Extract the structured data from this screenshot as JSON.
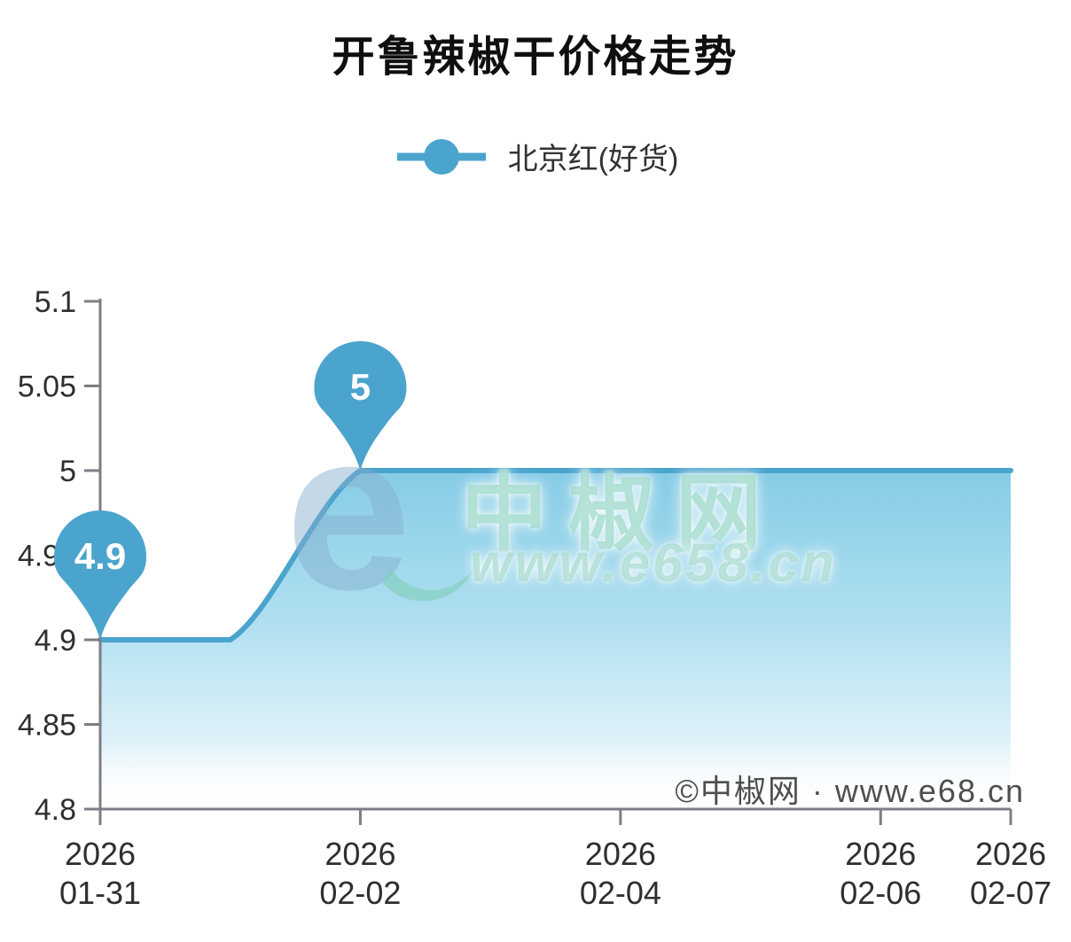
{
  "title": "开鲁辣椒干价格走势",
  "legend": {
    "label": "北京红(好货)",
    "color": "#4aa4cd"
  },
  "watermark": {
    "logo": "e",
    "name": "中椒网",
    "url": "www.e658.cn"
  },
  "copyright": {
    "text": "©中椒网 · www.e68.cn"
  },
  "colors": {
    "accent": "#4aa4cd",
    "axis": "#7d7d85",
    "tick_label": "#2f2f2f",
    "pin_text": "#ffffff",
    "area_top": "#7fc9e5",
    "area_mid": "#a9ddef",
    "area_low": "#d9eff8"
  },
  "chart_data": {
    "type": "line",
    "title": "开鲁辣椒干价格走势",
    "x": [
      "2026-01-31",
      "2026-02-01",
      "2026-02-02",
      "2026-02-03",
      "2026-02-04",
      "2026-02-05",
      "2026-02-06",
      "2026-02-07"
    ],
    "series": [
      {
        "name": "北京红(好货)",
        "color": "#4aa4cd",
        "values": [
          4.9,
          4.9,
          5,
          5,
          5,
          5,
          5,
          5
        ]
      }
    ],
    "ylim": [
      4.8,
      5.1
    ],
    "y_ticks": [
      5.1,
      5.05,
      5,
      4.95,
      4.9,
      4.85,
      4.8
    ],
    "y_tick_labels": [
      "5.1",
      "5.05",
      "5",
      "4.95",
      "4.9",
      "4.85",
      "4.8"
    ],
    "x_ticks": [
      "2026-01-31",
      "2026-02-02",
      "2026-02-04",
      "2026-02-06",
      "2026-02-07"
    ],
    "x_tick_labels": [
      [
        "2026",
        "01-31"
      ],
      [
        "2026",
        "02-02"
      ],
      [
        "2026",
        "02-04"
      ],
      [
        "2026",
        "02-06"
      ],
      [
        "2026",
        "02-07"
      ]
    ],
    "point_labels": [
      {
        "x": "2026-01-31",
        "value": 4.9,
        "label": "4.9"
      },
      {
        "x": "2026-02-02",
        "value": 5,
        "label": "5"
      }
    ],
    "smooth": true,
    "area": true,
    "grid": false,
    "legend_position": "top"
  }
}
